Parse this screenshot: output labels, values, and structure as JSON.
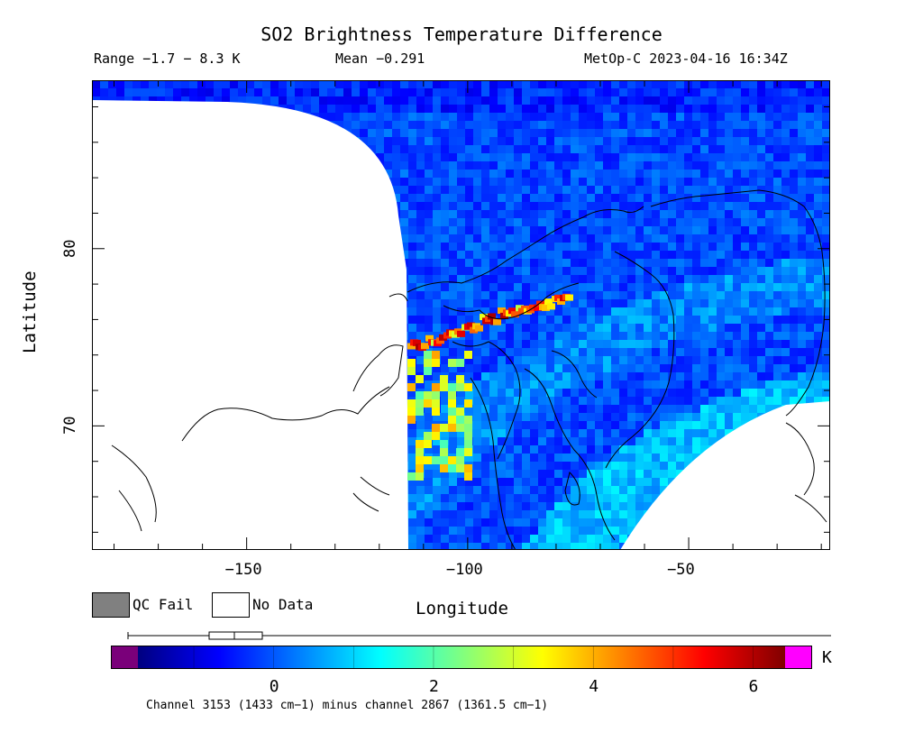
{
  "title": "SO2 Brightness Temperature Difference",
  "subtitle": {
    "range": "Range −1.7 − 8.3 K",
    "mean": "Mean −0.291",
    "satellite_time": "MetOp-C 2023-04-16 16:34Z"
  },
  "chart_data": {
    "type": "heatmap",
    "title": "SO2 Brightness Temperature Difference",
    "xlabel": "Longitude",
    "ylabel": "Latitude",
    "xlim": [
      -185,
      -18
    ],
    "ylim": [
      63,
      89.5
    ],
    "x_ticks": [
      -150,
      -100,
      -50
    ],
    "x_tick_labels": [
      "−150",
      "−100",
      "−50"
    ],
    "y_ticks": [
      70,
      80
    ],
    "y_tick_labels": [
      "70",
      "80"
    ],
    "colorbar": {
      "range": [
        -1.7,
        8.3
      ],
      "ticks": [
        0,
        2,
        4,
        6
      ],
      "tick_labels": [
        "0",
        "2",
        "4",
        "6"
      ],
      "unit": "K",
      "low_out_of_range_color": "#7a007a",
      "high_out_of_range_color": "#ff00ff",
      "colors": [
        "#000080",
        "#0000ff",
        "#0080ff",
        "#00ffff",
        "#80ff80",
        "#ffff00",
        "#ff8000",
        "#ff0000",
        "#800000"
      ]
    },
    "stats": {
      "min": -1.7,
      "max": 8.3,
      "mean": -0.291
    },
    "plume": {
      "description": "SO2 enhancement band",
      "peak_value": 6.5
    },
    "no_data_color": "#ffffff",
    "qc_fail_color": "#808080"
  },
  "legend": {
    "qc_fail": "QC Fail",
    "no_data": "No Data"
  },
  "footer": "Channel 3153 (1433 cm−1) minus channel 2867 (1361.5 cm−1)"
}
